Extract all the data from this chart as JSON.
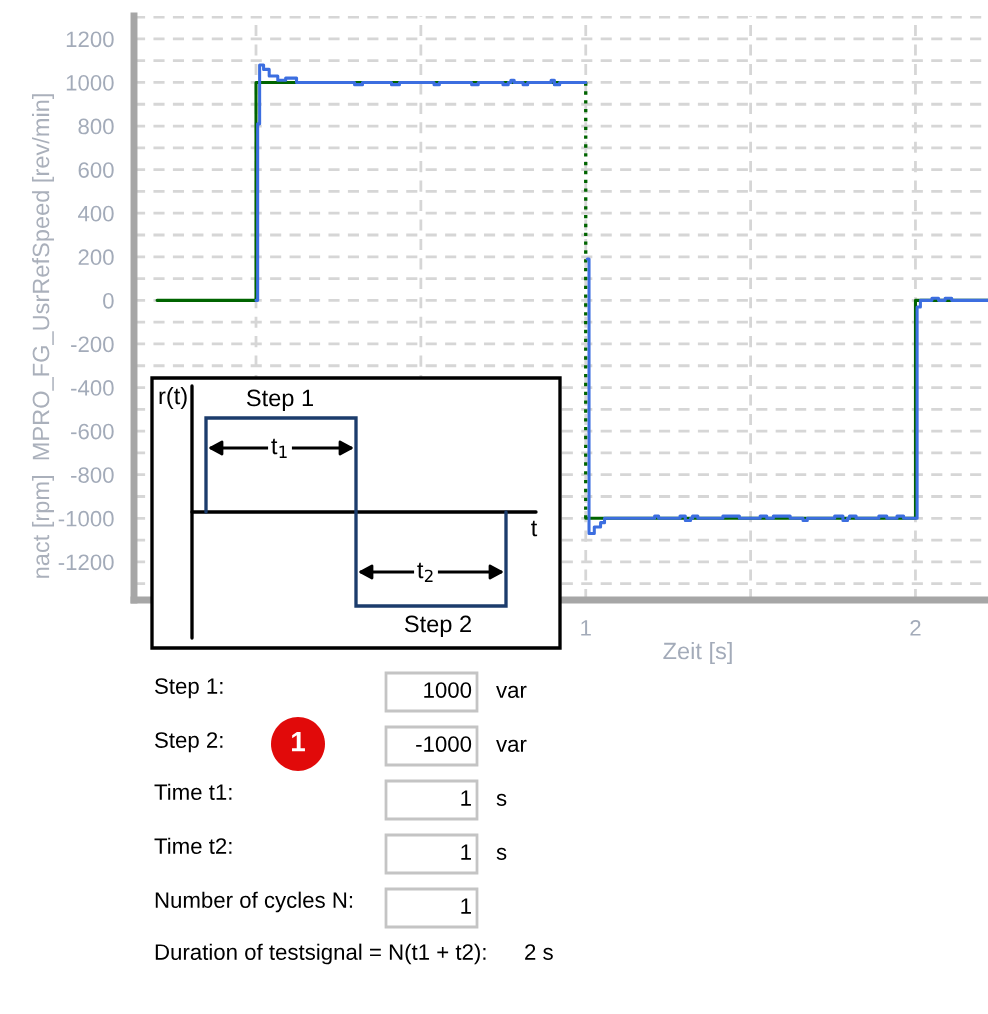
{
  "chart_data": {
    "type": "step",
    "xlabel": "Zeit [s]",
    "ylabel": "nact [rpm]  MPRO_FG_UsrRefSpeed [rev/min]",
    "xlim": [
      -0.37,
      2.22
    ],
    "ylim": [
      -1375,
      1305
    ],
    "xticks": [
      {
        "value": 0,
        "label": null
      },
      {
        "value": 0.5,
        "label": null
      },
      1,
      {
        "value": 1.5,
        "label": null
      },
      2
    ],
    "yticks": [
      {
        "value": -1300,
        "label": null
      },
      -1200,
      {
        "value": -1100,
        "label": null
      },
      -1000,
      {
        "value": -900,
        "label": null
      },
      -800,
      {
        "value": -700,
        "label": null
      },
      -600,
      {
        "value": -500,
        "label": null
      },
      -400,
      {
        "value": -300,
        "label": null
      },
      -200,
      {
        "value": -100,
        "label": null
      },
      0,
      {
        "value": 100,
        "label": null
      },
      200,
      {
        "value": 300,
        "label": null
      },
      400,
      {
        "value": 500,
        "label": null
      },
      600,
      {
        "value": 700,
        "label": null
      },
      800,
      {
        "value": 900,
        "label": null
      },
      1000,
      {
        "value": 1100,
        "label": null
      },
      1200,
      {
        "value": 1300,
        "label": null
      }
    ],
    "grid": true,
    "series": [
      {
        "color": "#006400",
        "x": [
          -0.3,
          0,
          1
        ],
        "values": [
          0,
          1000,
          1000
        ]
      },
      {
        "type": "line",
        "color": "#006400",
        "line_style": "dotted",
        "x": [
          1,
          1
        ],
        "values": [
          1000,
          -1000
        ]
      },
      {
        "color": "#006400",
        "x": [
          1,
          2,
          2.22
        ],
        "values": [
          -1000,
          0,
          0
        ]
      },
      {
        "color": "#3c6ee0",
        "x": [
          0,
          0.005,
          0.011,
          0.023,
          0.04,
          0.066,
          0.09,
          0.123,
          0.299,
          0.323,
          0.411,
          0.435,
          0.54,
          0.556,
          0.654,
          0.674,
          0.749,
          0.765,
          0.773,
          0.783,
          0.81,
          0.824,
          0.895,
          0.905,
          0.921,
          1.0,
          1.005,
          1.01,
          1.026,
          1.045,
          1.057,
          1.209,
          1.221,
          1.286,
          1.302,
          1.318,
          1.324,
          1.34,
          1.416,
          1.466,
          1.529,
          1.549,
          1.569,
          1.62,
          1.659,
          1.672,
          1.755,
          1.78,
          1.794,
          1.8,
          1.82,
          1.889,
          1.913,
          1.944,
          1.964,
          2.005,
          2.015,
          2.05,
          2.07,
          2.09,
          2.11,
          2.22
        ],
        "values": [
          0,
          810,
          1080,
          1060,
          1030,
          1010,
          1020,
          1000,
          990,
          1000,
          990,
          1000,
          990,
          1000,
          990,
          1000,
          990,
          1000,
          1010,
          1000,
          990,
          1000,
          1010,
          990,
          1000,
          null,
          190,
          -1070,
          -1040,
          -1020,
          -1000,
          -990,
          -1000,
          -990,
          -1010,
          -1000,
          -990,
          -1000,
          -990,
          -1000,
          -990,
          -1000,
          -990,
          -1000,
          -1010,
          -1000,
          -990,
          -1010,
          -1000,
          -990,
          -1000,
          -990,
          -1000,
          -990,
          -1000,
          -30,
          0,
          10,
          0,
          10,
          0,
          0
        ]
      }
    ],
    "annotations": [
      "r(t)",
      "Step 1",
      "t$_{1}$",
      "t",
      "t$_{2}$",
      "Step 2",
      "Step 1:",
      "1000",
      "var",
      "Step 2:",
      "-1000",
      "var",
      "1",
      "Time t1:",
      "1",
      "s",
      "Time t2:",
      "1",
      "s",
      "Number of cycles N:",
      "1",
      "Duration of testsignal = N(t1 + t2):",
      "2 s"
    ]
  }
}
